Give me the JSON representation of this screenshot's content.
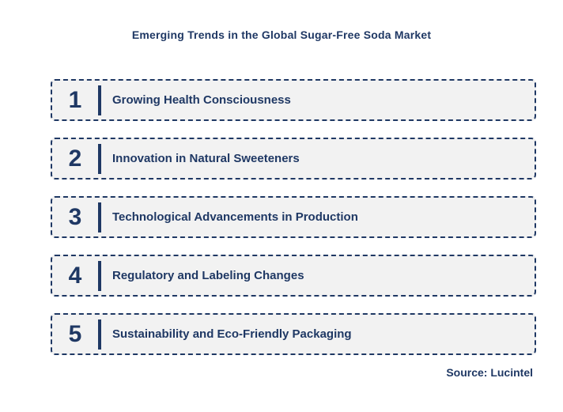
{
  "title": "Emerging Trends in the Global Sugar-Free Soda Market",
  "trends": [
    {
      "number": "1",
      "label": "Growing Health Consciousness"
    },
    {
      "number": "2",
      "label": "Innovation in Natural Sweeteners"
    },
    {
      "number": "3",
      "label": "Technological Advancements in Production"
    },
    {
      "number": "4",
      "label": "Regulatory and Labeling Changes"
    },
    {
      "number": "5",
      "label": "Sustainability and Eco-Friendly Packaging"
    }
  ],
  "source": "Source: Lucintel",
  "colors": {
    "accent_navy": "#1F3864",
    "row_background": "#F2F2F2",
    "page_background": "#FFFFFF"
  }
}
